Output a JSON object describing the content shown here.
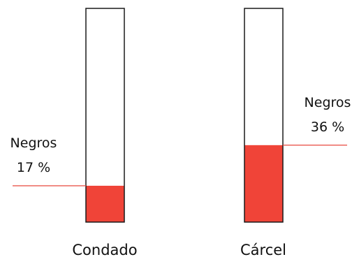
{
  "chart_data": {
    "type": "bar",
    "categories": [
      "Condado",
      "Cárcel"
    ],
    "series": [
      {
        "values": [
          17,
          36
        ]
      }
    ],
    "ylim": [
      0,
      100
    ],
    "annotations": [
      {
        "label": "Negros",
        "value_text": "17 %"
      },
      {
        "label": "Negros",
        "value_text": "36 %"
      }
    ],
    "colors": {
      "fill": "#f04438",
      "outline": "#1a1a1a",
      "leader": "#e8473c"
    }
  }
}
